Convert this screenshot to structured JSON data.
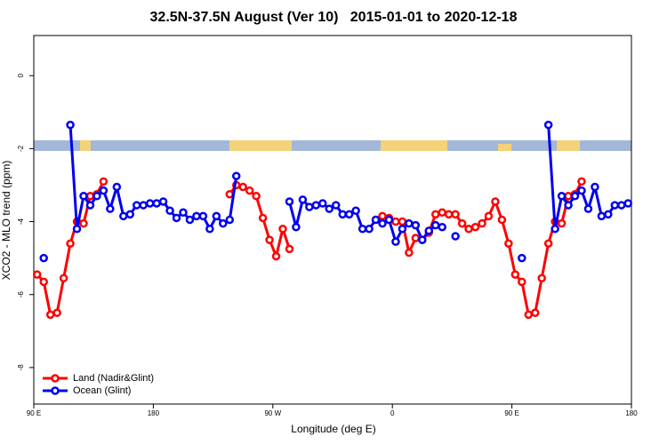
{
  "chart_data": {
    "type": "line",
    "title": "32.5N-37.5N August (Ver 10)   2015-01-01 to 2020-12-18",
    "x_label": "Longitude (deg E)",
    "y_label": "XCO2 - MLO trend (ppm)",
    "xlim": [
      90,
      540
    ],
    "xticks": [
      {
        "value": 90,
        "label": "90 E"
      },
      {
        "value": 180,
        "label": "180"
      },
      {
        "value": 270,
        "label": "90 W"
      },
      {
        "value": 360,
        "label": "0"
      },
      {
        "value": 450,
        "label": "90 E"
      },
      {
        "value": 540,
        "label": "180"
      }
    ],
    "ylim": [
      -9,
      1.1
    ],
    "yticks": [
      0,
      -2,
      -4,
      -6,
      -8
    ],
    "legend": "bottom left",
    "series": [
      {
        "name": "Land (Nadir&Glint)",
        "color": "#ff0000",
        "x": [
          92.5,
          97.5,
          102.5,
          107.5,
          112.5,
          117.5,
          122.5,
          127.5,
          132.5,
          137.5,
          142.5,
          147.5,
          237.5,
          242.5,
          247.5,
          252.5,
          257.5,
          262.5,
          267.5,
          272.5,
          277.5,
          282.5,
          287.5,
          347.5,
          352.5,
          357.5,
          362.5,
          367.5,
          372.5,
          377.5,
          382.5,
          387.5,
          392.5,
          397.5,
          402.5,
          407.5,
          412.5,
          417.5,
          422.5,
          427.5,
          432.5,
          437.5,
          442.5,
          447.5,
          452.5,
          457.5,
          462.5,
          467.5,
          472.5,
          477.5,
          482.5,
          487.5,
          492.5,
          497.5,
          502.5
        ],
        "values": [
          -5.45,
          -5.65,
          -6.55,
          -6.5,
          -5.55,
          -4.6,
          -4.0,
          -4.05,
          -3.3,
          -3.25,
          -2.9,
          null,
          -3.25,
          -3.0,
          -3.05,
          -3.15,
          -3.3,
          -3.9,
          -4.5,
          -4.95,
          -4.2,
          -4.75,
          null,
          -3.95,
          -3.85,
          -3.9,
          -4.0,
          -4.0,
          -4.85,
          -4.45,
          -4.5,
          -4.3,
          -3.8,
          -3.75,
          -3.8,
          -3.8,
          -4.05,
          -4.2,
          -4.15,
          -4.05,
          -3.85,
          -3.45,
          -3.95,
          -4.6,
          -5.45,
          -5.65,
          -6.55,
          -6.5,
          -5.55,
          -4.6,
          -4.0,
          -4.05,
          -3.3,
          -3.25,
          -2.9
        ]
      },
      {
        "name": "Ocean (Glint)",
        "color": "#0000ee",
        "x": [
          97.5,
          102.5,
          117.5,
          122.5,
          127.5,
          132.5,
          137.5,
          142.5,
          147.5,
          152.5,
          157.5,
          162.5,
          167.5,
          172.5,
          177.5,
          182.5,
          187.5,
          192.5,
          197.5,
          202.5,
          207.5,
          212.5,
          217.5,
          222.5,
          227.5,
          232.5,
          237.5,
          242.5,
          247.5,
          282.5,
          287.5,
          292.5,
          297.5,
          302.5,
          307.5,
          312.5,
          317.5,
          322.5,
          327.5,
          332.5,
          337.5,
          342.5,
          347.5,
          352.5,
          357.5,
          362.5,
          367.5,
          372.5,
          377.5,
          382.5,
          387.5,
          392.5,
          397.5,
          402.5,
          407.5,
          412.5,
          457.5,
          462.5,
          477.5,
          482.5,
          487.5,
          492.5,
          497.5,
          502.5,
          507.5,
          512.5,
          517.5,
          522.5,
          527.5,
          532.5,
          537.5
        ],
        "values": [
          -5.0,
          null,
          -1.35,
          -4.2,
          -3.3,
          -3.55,
          -3.3,
          -3.15,
          -3.65,
          -3.05,
          -3.85,
          -3.8,
          -3.55,
          -3.55,
          -3.5,
          -3.5,
          -3.45,
          -3.7,
          -3.9,
          -3.75,
          -3.95,
          -3.85,
          -3.85,
          -4.2,
          -3.85,
          -4.05,
          -3.95,
          -2.75,
          null,
          -3.45,
          -4.15,
          -3.4,
          -3.6,
          -3.55,
          -3.5,
          -3.65,
          -3.55,
          -3.8,
          -3.8,
          -3.7,
          -4.2,
          -4.2,
          -3.95,
          -4.05,
          -3.95,
          -4.55,
          -4.2,
          -4.05,
          -4.1,
          -4.5,
          -4.25,
          -4.1,
          -4.15,
          null,
          -4.4,
          null,
          -5.0,
          null,
          -1.35,
          -4.2,
          -3.3,
          -3.55,
          -3.3,
          -3.15,
          -3.65,
          -3.05,
          -3.85,
          -3.8,
          -3.55,
          -3.55,
          -3.5
        ]
      }
    ]
  }
}
